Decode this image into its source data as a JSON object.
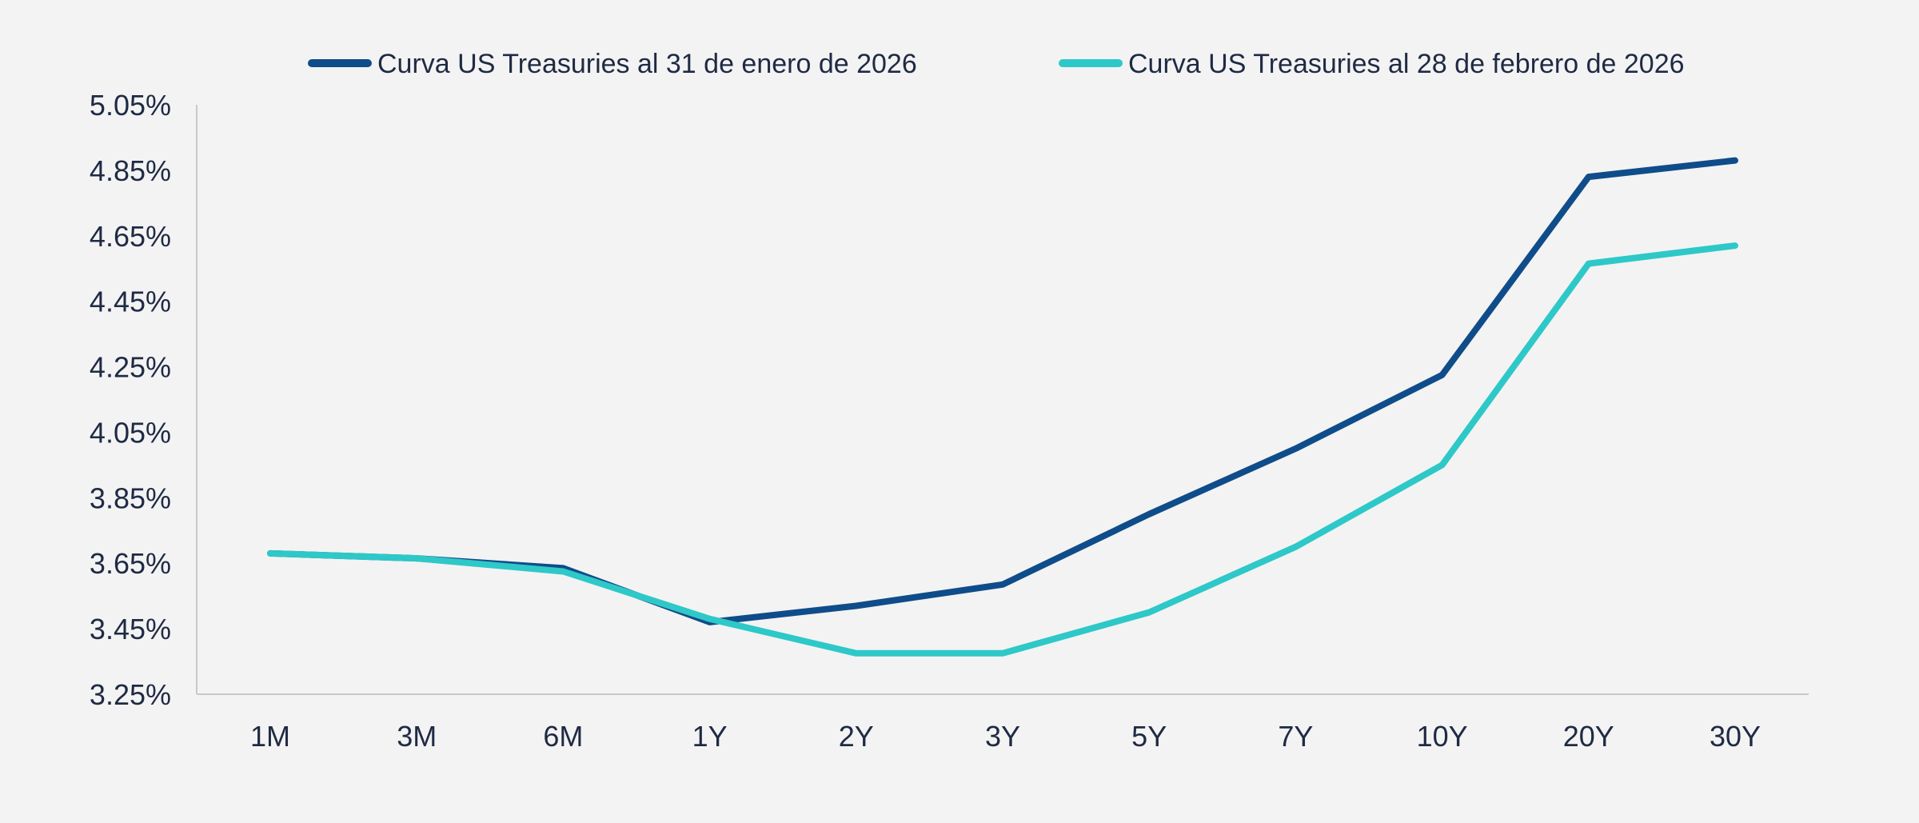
{
  "chart_data": {
    "type": "line",
    "title": "",
    "xlabel": "",
    "ylabel": "",
    "categories": [
      "1M",
      "3M",
      "6M",
      "1Y",
      "2Y",
      "3Y",
      "5Y",
      "7Y",
      "10Y",
      "20Y",
      "30Y"
    ],
    "ylim": [
      3.25,
      5.05
    ],
    "yticks": [
      3.25,
      3.45,
      3.65,
      3.85,
      4.05,
      4.25,
      4.45,
      4.65,
      4.85,
      5.05
    ],
    "ytick_labels": [
      "3.25%",
      "3.45%",
      "3.65%",
      "3.85%",
      "4.05%",
      "4.25%",
      "4.45%",
      "4.65%",
      "4.85%",
      "5.05%"
    ],
    "grid": false,
    "legend_position": "top",
    "series": [
      {
        "name": "Curva US Treasuries al 31 de enero de 2026",
        "color": "#0f4c8a",
        "values": [
          3.68,
          3.665,
          3.635,
          3.47,
          3.52,
          3.585,
          3.8,
          4.0,
          4.225,
          4.83,
          4.88
        ]
      },
      {
        "name": "Curva US Treasuries al 28 de febrero de 2026",
        "color": "#2ec8c8",
        "values": [
          3.68,
          3.665,
          3.625,
          3.48,
          3.375,
          3.375,
          3.5,
          3.7,
          3.95,
          4.565,
          4.62
        ]
      }
    ]
  }
}
